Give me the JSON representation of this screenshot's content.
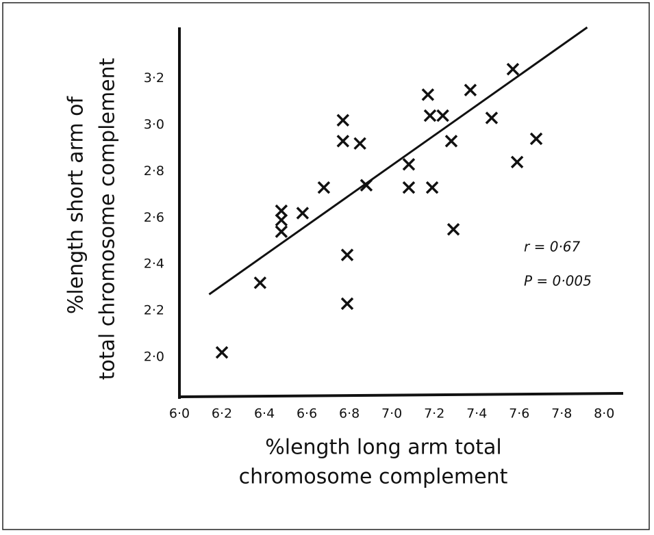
{
  "chart_data": {
    "type": "scatter",
    "x_label": [
      "%length long arm total",
      "chromosome complement"
    ],
    "y_label": [
      "%length short arm of",
      "total chromosome complement"
    ],
    "annotations": [
      "r = 0·67",
      "P = 0·005"
    ],
    "x": [
      6.2,
      6.38,
      6.48,
      6.48,
      6.48,
      6.58,
      6.68,
      6.77,
      6.77,
      6.85,
      6.79,
      6.79,
      6.88,
      7.08,
      7.08,
      7.17,
      7.18,
      7.24,
      7.19,
      7.28,
      7.29,
      7.37,
      7.47,
      7.57,
      7.59,
      7.68
    ],
    "values": [
      2.02,
      2.32,
      2.63,
      2.59,
      2.54,
      2.62,
      2.73,
      3.02,
      2.93,
      2.92,
      2.44,
      2.23,
      2.74,
      2.83,
      2.73,
      3.13,
      3.04,
      3.04,
      2.73,
      2.93,
      2.55,
      3.15,
      3.03,
      3.24,
      2.84,
      2.94
    ],
    "color": "#111111",
    "trend": {
      "x": [
        6.14,
        7.92
      ],
      "y": [
        2.27,
        3.42
      ]
    },
    "xlim": [
      6.0,
      8.07
    ],
    "ylim": [
      1.82,
      3.42
    ],
    "xticks": [
      {
        "value": 6.0,
        "label": "6·0"
      },
      {
        "value": 6.2,
        "label": "6·2"
      },
      {
        "value": 6.4,
        "label": "6·4"
      },
      {
        "value": 6.6,
        "label": "6·6"
      },
      {
        "value": 6.8,
        "label": "6·8"
      },
      {
        "value": 7.0,
        "label": "7·0"
      },
      {
        "value": 7.2,
        "label": "7·2"
      },
      {
        "value": 7.4,
        "label": "7·4"
      },
      {
        "value": 7.6,
        "label": "7·6"
      },
      {
        "value": 7.8,
        "label": "7·8"
      },
      {
        "value": 8.0,
        "label": "8·0"
      }
    ],
    "yticks": [
      {
        "value": 2.0,
        "label": "2·0"
      },
      {
        "value": 2.2,
        "label": "2·2"
      },
      {
        "value": 2.4,
        "label": "2·4"
      },
      {
        "value": 2.6,
        "label": "2·6"
      },
      {
        "value": 2.8,
        "label": "2·8"
      },
      {
        "value": 3.0,
        "label": "3·0"
      },
      {
        "value": 3.2,
        "label": "3·2"
      }
    ]
  }
}
